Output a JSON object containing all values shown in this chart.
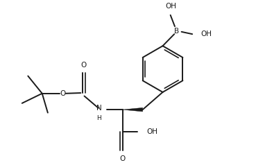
{
  "bg_color": "#ffffff",
  "line_color": "#1a1a1a",
  "line_width": 1.4,
  "font_size": 7.5,
  "fig_width": 3.69,
  "fig_height": 2.38,
  "dpi": 100,
  "xlim": [
    0,
    9.5
  ],
  "ylim": [
    0,
    6.2
  ]
}
